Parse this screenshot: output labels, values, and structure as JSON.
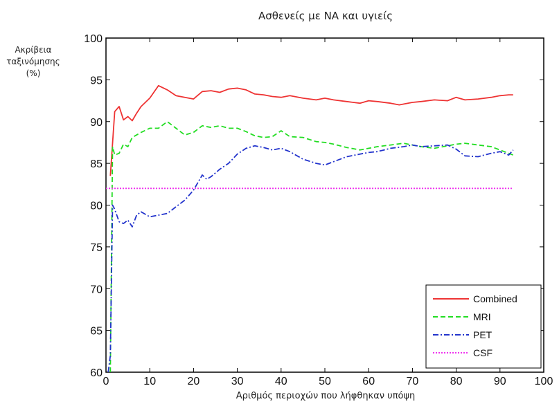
{
  "chart_data": {
    "type": "line",
    "title": "Ασθενείς με ΝΑ και υγιείς",
    "ylabel_lines": [
      "Ακρίβεια",
      "ταξινόμησης",
      "(%)"
    ],
    "xlabel": "Αριθμός περιοχών που λήφθηκαν υπόψη",
    "xlim": [
      0,
      100
    ],
    "ylim": [
      60,
      100
    ],
    "x_ticks": [
      "0",
      "10",
      "20",
      "30",
      "40",
      "50",
      "60",
      "70",
      "80",
      "90",
      "100"
    ],
    "y_ticks": [
      "60",
      "65",
      "70",
      "75",
      "80",
      "85",
      "90",
      "95",
      "100"
    ],
    "grid": false,
    "legend_position": "bottom-right",
    "series": [
      {
        "name": "Combined",
        "color": "#ee3333",
        "style": "solid",
        "x": [
          1,
          2,
          3,
          4,
          5,
          6,
          7,
          8,
          10,
          12,
          14,
          16,
          18,
          20,
          22,
          24,
          26,
          28,
          30,
          32,
          34,
          36,
          38,
          40,
          42,
          45,
          48,
          50,
          52,
          55,
          58,
          60,
          62,
          65,
          67,
          70,
          72,
          75,
          78,
          80,
          82,
          85,
          88,
          90,
          92,
          93
        ],
        "y": [
          83.5,
          91.2,
          91.8,
          90.2,
          90.6,
          90.1,
          91.0,
          91.8,
          92.8,
          94.3,
          93.8,
          93.1,
          92.9,
          92.7,
          93.6,
          93.7,
          93.5,
          93.9,
          94.0,
          93.8,
          93.3,
          93.2,
          93.0,
          92.9,
          93.1,
          92.8,
          92.6,
          92.8,
          92.6,
          92.4,
          92.2,
          92.5,
          92.4,
          92.2,
          92.0,
          92.3,
          92.4,
          92.6,
          92.5,
          92.9,
          92.6,
          92.7,
          92.9,
          93.1,
          93.2,
          93.2
        ],
        "marker": "none"
      },
      {
        "name": "MRI",
        "color": "#22dd22",
        "style": "dashed",
        "x": [
          1,
          1.5,
          2,
          3,
          4,
          5,
          6,
          8,
          10,
          12,
          14,
          16,
          18,
          20,
          22,
          24,
          26,
          28,
          30,
          32,
          34,
          36,
          38,
          40,
          42,
          45,
          48,
          50,
          52,
          55,
          58,
          60,
          62,
          65,
          68,
          70,
          72,
          75,
          78,
          80,
          82,
          85,
          88,
          90,
          92,
          93
        ],
        "y": [
          60,
          87.0,
          86.0,
          86.2,
          87.3,
          87.0,
          88.1,
          88.7,
          89.2,
          89.2,
          90.0,
          89.2,
          88.4,
          88.7,
          89.5,
          89.3,
          89.5,
          89.2,
          89.2,
          88.8,
          88.3,
          88.1,
          88.2,
          88.9,
          88.2,
          88.1,
          87.6,
          87.5,
          87.3,
          86.9,
          86.6,
          86.8,
          87.0,
          87.2,
          87.4,
          87.2,
          87.0,
          86.8,
          87.1,
          87.3,
          87.4,
          87.2,
          87.0,
          86.6,
          86.2,
          86.0
        ],
        "marker": "none"
      },
      {
        "name": "PET",
        "color": "#2233cc",
        "style": "dashdot",
        "x": [
          0.5,
          1,
          1.5,
          2,
          3,
          4,
          5,
          6,
          7,
          8,
          10,
          12,
          14,
          16,
          18,
          20,
          22,
          23,
          24,
          26,
          28,
          30,
          32,
          34,
          36,
          38,
          40,
          42,
          45,
          48,
          50,
          52,
          55,
          58,
          60,
          62,
          65,
          68,
          70,
          72,
          75,
          78,
          80,
          82,
          85,
          88,
          90,
          92,
          93
        ],
        "y": [
          60,
          62,
          80.0,
          79.5,
          78.0,
          77.8,
          78.2,
          77.4,
          78.8,
          79.2,
          78.6,
          78.8,
          79.0,
          79.8,
          80.6,
          81.8,
          83.6,
          83.1,
          83.4,
          84.3,
          85.0,
          86.1,
          86.8,
          87.1,
          86.9,
          86.6,
          86.8,
          86.4,
          85.5,
          85.0,
          84.8,
          85.2,
          85.8,
          86.1,
          86.3,
          86.4,
          86.8,
          87.0,
          87.2,
          87.0,
          87.1,
          87.2,
          86.7,
          85.9,
          85.8,
          86.2,
          86.4,
          86.0,
          86.6
        ],
        "marker": "none"
      },
      {
        "name": "CSF",
        "color": "#ee33ee",
        "style": "dotted",
        "x": [
          0,
          93
        ],
        "y": [
          82.0,
          82.0
        ],
        "marker": "none"
      }
    ]
  }
}
